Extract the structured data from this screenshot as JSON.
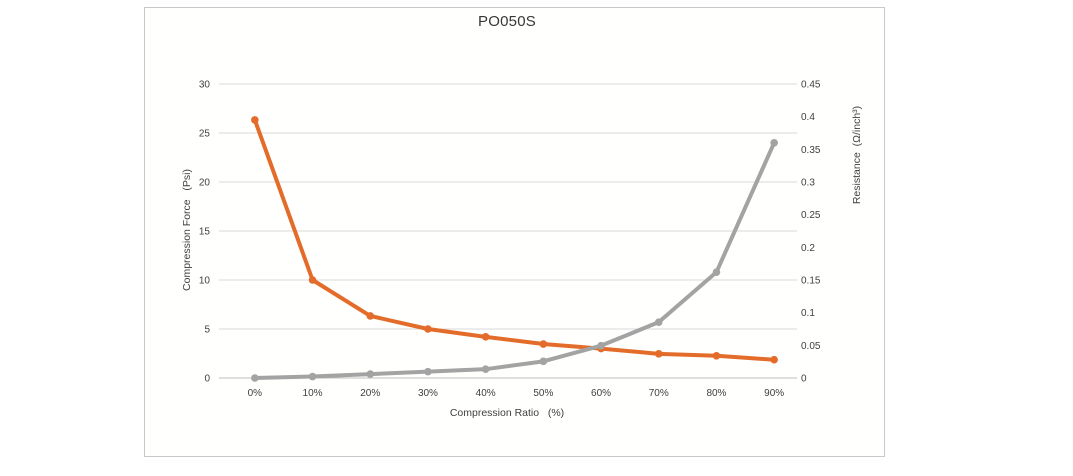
{
  "window": {
    "background": "#ffffff"
  },
  "chart_frame": {
    "border_color": "#c9c9c9",
    "background": "#fffffe"
  },
  "chart_data": {
    "type": "line",
    "title": "PO050S",
    "xlabel": "Compression Ratio   (%)",
    "categories": [
      "0%",
      "10%",
      "20%",
      "30%",
      "40%",
      "50%",
      "60%",
      "70%",
      "80%",
      "90%"
    ],
    "left_axis": {
      "title": "Compression Force   (Psi)",
      "min": 0,
      "max": 30,
      "tick_labels": [
        "0",
        "5",
        "10",
        "15",
        "20",
        "25",
        "30"
      ]
    },
    "right_axis": {
      "title": "Resistance  (Ω/inch³)",
      "min": 0,
      "max": 0.45,
      "tick_labels": [
        "0",
        "0.05",
        "0.1",
        "0.15",
        "0.2",
        "0.25",
        "0.3",
        "0.35",
        "0.4",
        "0.45"
      ]
    },
    "series": [
      {
        "name": "Resistance",
        "axis": "right",
        "color": "#e46c2a",
        "values": [
          0.395,
          0.15,
          0.095,
          0.075,
          0.063,
          0.052,
          0.045,
          0.037,
          0.034,
          0.028
        ]
      },
      {
        "name": "Compression Force",
        "axis": "left",
        "color": "#a3a3a3",
        "values": [
          0,
          0.15,
          0.4,
          0.65,
          0.9,
          1.7,
          3.3,
          5.7,
          10.8,
          24
        ]
      }
    ],
    "gridline_color": "#d9d9d9",
    "axis_line_color": "#bfbfbf",
    "legend": "none",
    "grid": "horizontal-only"
  }
}
